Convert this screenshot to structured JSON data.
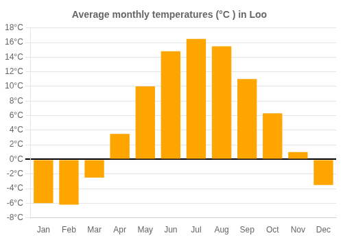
{
  "chart_data": {
    "type": "bar",
    "title": "Average monthly temperatures (°C ) in Loo",
    "categories": [
      "Jan",
      "Feb",
      "Mar",
      "Apr",
      "May",
      "Jun",
      "Jul",
      "Aug",
      "Sep",
      "Oct",
      "Nov",
      "Dec"
    ],
    "values": [
      -6,
      -6.2,
      -2.5,
      3.5,
      10,
      14.8,
      16.5,
      15.5,
      11,
      6.3,
      1,
      -3.5
    ],
    "color": "#FFA500",
    "ylim": [
      -8,
      18
    ],
    "yticks": [
      {
        "value": -8,
        "label": "-8°C"
      },
      {
        "value": -6,
        "label": "-6°C"
      },
      {
        "value": -4,
        "label": "-4°C"
      },
      {
        "value": -2,
        "label": "-2°C"
      },
      {
        "value": 0,
        "label": "0°C"
      },
      {
        "value": 2,
        "label": "2°C"
      },
      {
        "value": 4,
        "label": "4°C"
      },
      {
        "value": 6,
        "label": "6°C"
      },
      {
        "value": 8,
        "label": "8°C"
      },
      {
        "value": 10,
        "label": "10°C"
      },
      {
        "value": 12,
        "label": "12°C"
      },
      {
        "value": 14,
        "label": "14°C"
      },
      {
        "value": 16,
        "label": "16°C"
      },
      {
        "value": 18,
        "label": "18°C"
      }
    ],
    "grid": true
  }
}
